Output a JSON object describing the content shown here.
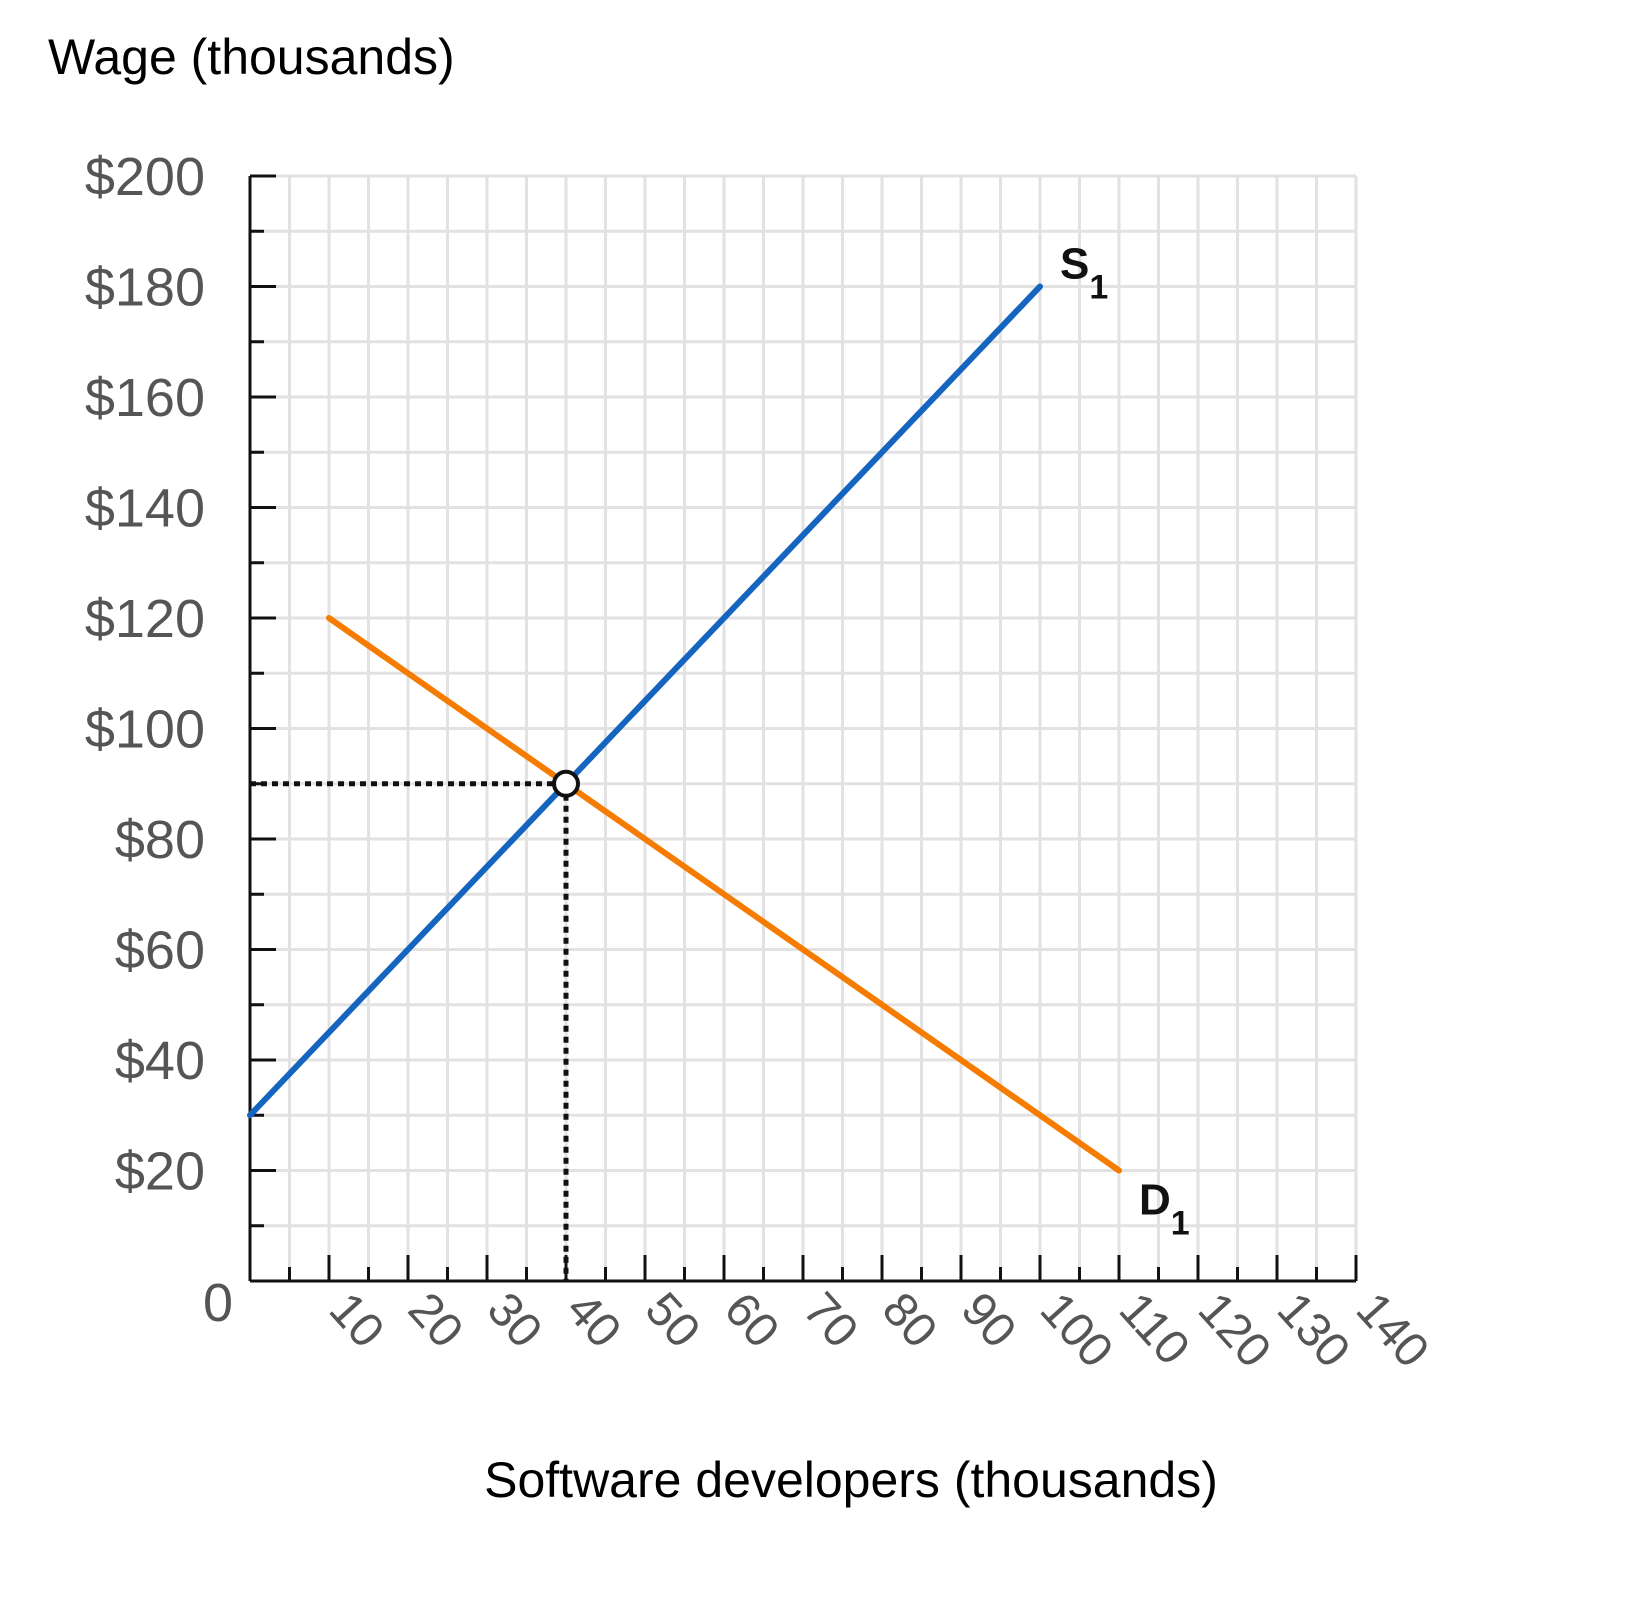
{
  "chart_data": {
    "type": "line",
    "title": "",
    "ylabel": "Wage (thousands)",
    "xlabel": "Software developers (thousands)",
    "xlim": [
      0,
      140
    ],
    "ylim": [
      0,
      200
    ],
    "x_ticks": [
      10,
      20,
      30,
      40,
      50,
      60,
      70,
      80,
      90,
      100,
      110,
      120,
      130,
      140
    ],
    "x_tick_labels": [
      "10",
      "20",
      "30",
      "40",
      "50",
      "60",
      "70",
      "80",
      "90",
      "100",
      "110",
      "120",
      "130",
      "140"
    ],
    "y_ticks": [
      0,
      20,
      40,
      60,
      80,
      100,
      120,
      140,
      160,
      180,
      200
    ],
    "y_tick_labels": [
      "0",
      "$20",
      "$40",
      "$60",
      "$80",
      "$100",
      "$120",
      "$140",
      "$160",
      "$180",
      "$200"
    ],
    "grid": true,
    "series": [
      {
        "name": "S1",
        "label_main": "S",
        "label_sub": "1",
        "color": "#1565c0",
        "points": [
          [
            0,
            30
          ],
          [
            100,
            180
          ]
        ]
      },
      {
        "name": "D1",
        "label_main": "D",
        "label_sub": "1",
        "color": "#f57c00",
        "points": [
          [
            10,
            120
          ],
          [
            110,
            20
          ]
        ]
      }
    ],
    "equilibrium": {
      "x": 40,
      "y": 90
    }
  }
}
